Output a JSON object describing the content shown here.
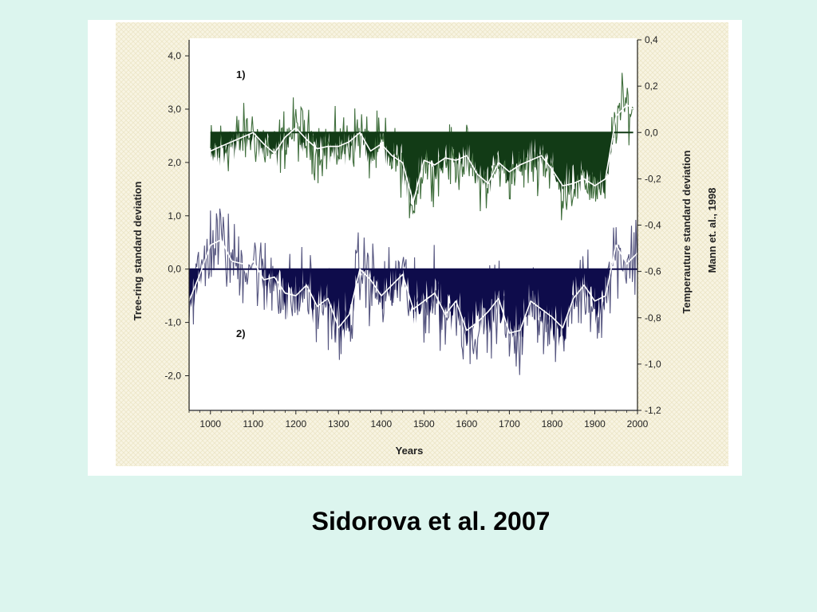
{
  "caption": "Sidorova et al. 2007",
  "chart_data": {
    "type": "line",
    "xlabel": "Years",
    "ylabel_left": "Tree-ring standard deviation",
    "ylabel_right": "Temperauture standard deviation",
    "ylabel_right_source": "Mann et. al., 1998",
    "xlim": [
      950,
      2000
    ],
    "ylim_left": [
      -2.65,
      4.3
    ],
    "ylim_right": [
      -1.2,
      0.4
    ],
    "x_ticks": [
      "1000",
      "1100",
      "1200",
      "1300",
      "1400",
      "1500",
      "1600",
      "1700",
      "1800",
      "1900",
      "2000"
    ],
    "y_left_ticks": [
      "4,0",
      "3,0",
      "2,0",
      "1,0",
      "0,0",
      "-1,0",
      "-2,0"
    ],
    "y_right_ticks": [
      "0,4",
      "0,2",
      "0,0",
      "-0,2",
      "-0,4",
      "-0,6",
      "-0,8",
      "-1,0",
      "-1,2"
    ],
    "grid": false,
    "series": [
      {
        "name": "1)",
        "axis": "right",
        "baseline": 0.0,
        "annual_color": "#3f6e3c",
        "fill_color": "#123b16",
        "smooth_color": "#ffffff",
        "x": [
          1000,
          1025,
          1050,
          1075,
          1100,
          1125,
          1150,
          1175,
          1200,
          1225,
          1250,
          1275,
          1300,
          1325,
          1350,
          1375,
          1400,
          1425,
          1450,
          1475,
          1500,
          1525,
          1550,
          1575,
          1600,
          1625,
          1650,
          1675,
          1700,
          1725,
          1750,
          1775,
          1800,
          1825,
          1850,
          1875,
          1900,
          1925,
          1950,
          1975,
          1990
        ],
        "smoothed": [
          -0.08,
          -0.06,
          -0.04,
          -0.02,
          0.0,
          -0.05,
          -0.09,
          -0.02,
          0.02,
          -0.03,
          -0.07,
          -0.06,
          -0.06,
          -0.04,
          0.0,
          -0.08,
          -0.05,
          -0.1,
          -0.13,
          -0.3,
          -0.12,
          -0.14,
          -0.11,
          -0.12,
          -0.1,
          -0.18,
          -0.22,
          -0.13,
          -0.17,
          -0.14,
          -0.12,
          -0.1,
          -0.16,
          -0.23,
          -0.22,
          -0.2,
          -0.23,
          -0.2,
          0.07,
          0.12,
          0.1
        ]
      },
      {
        "name": "2)",
        "axis": "left",
        "baseline": 0.0,
        "annual_color": "#55557f",
        "fill_color": "#0e0c4b",
        "smooth_color": "#ffffff",
        "x": [
          950,
          975,
          1000,
          1025,
          1050,
          1075,
          1100,
          1125,
          1150,
          1175,
          1200,
          1225,
          1250,
          1275,
          1300,
          1325,
          1350,
          1375,
          1400,
          1425,
          1450,
          1475,
          1500,
          1525,
          1550,
          1575,
          1600,
          1625,
          1650,
          1675,
          1700,
          1725,
          1750,
          1775,
          1800,
          1825,
          1850,
          1875,
          1900,
          1925,
          1950,
          1975,
          2000
        ],
        "smoothed": [
          -0.6,
          -0.1,
          0.45,
          0.55,
          0.15,
          0.1,
          0.15,
          -0.2,
          -0.15,
          -0.45,
          -0.5,
          -0.3,
          -0.7,
          -0.55,
          -1.1,
          -0.85,
          0.0,
          -0.2,
          -0.5,
          -0.3,
          -0.1,
          -0.75,
          -0.6,
          -0.45,
          -0.85,
          -0.6,
          -1.15,
          -1.0,
          -0.8,
          -0.55,
          -1.2,
          -1.15,
          -0.6,
          -0.75,
          -0.9,
          -1.1,
          -0.55,
          -0.3,
          -0.6,
          -0.5,
          0.45,
          0.1,
          0.3
        ]
      }
    ]
  }
}
